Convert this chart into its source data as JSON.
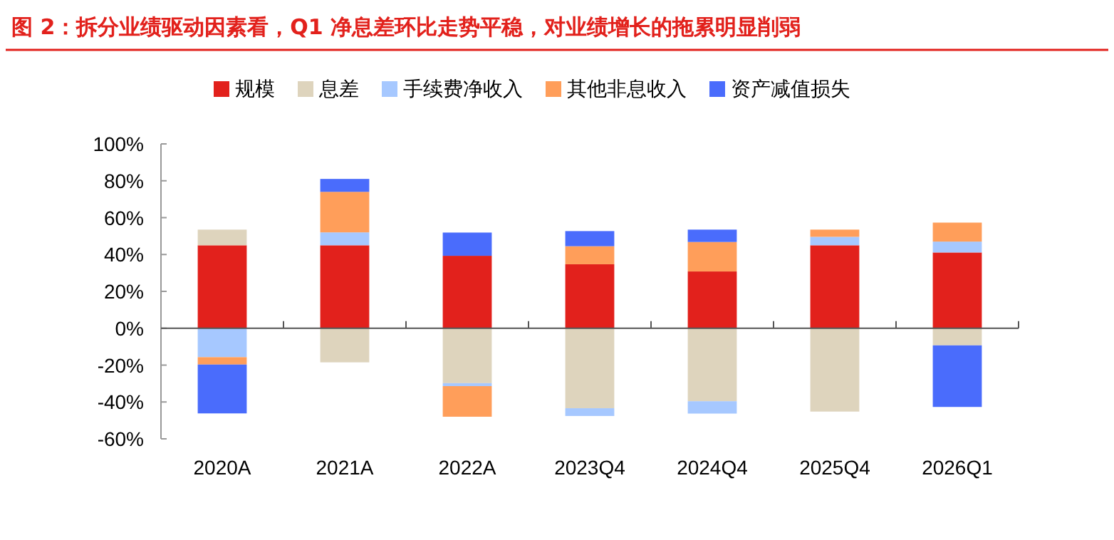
{
  "chart_data": {
    "type": "bar",
    "title": "图 2：拆分业绩驱动因素看，Q1 净息差环比走势平稳，对业绩增长的拖累明显削弱",
    "categories": [
      "2020A",
      "2021A",
      "2022A",
      "2023Q4",
      "2024Q4",
      "2025Q4",
      "2026Q1"
    ],
    "stacked": true,
    "legend": "top",
    "ylim": [
      -60,
      100
    ],
    "yticks": [
      {
        "value": -60,
        "label": "-60%"
      },
      {
        "value": -40,
        "label": "-40%"
      },
      {
        "value": -20,
        "label": "-20%"
      },
      {
        "value": 0,
        "label": "0%"
      },
      {
        "value": 20,
        "label": "20%"
      },
      {
        "value": 40,
        "label": "40%"
      },
      {
        "value": 60,
        "label": "60%"
      },
      {
        "value": 80,
        "label": "80%"
      },
      {
        "value": 100,
        "label": "100%"
      }
    ],
    "series": [
      {
        "name": "规模",
        "color": "#e2211c",
        "values": [
          45,
          45,
          39.3,
          34.7,
          30.8,
          45,
          41.1
        ]
      },
      {
        "name": "息差",
        "color": "#ded4bd",
        "values": [
          8.5,
          -18.5,
          -29.8,
          -43.4,
          -39.6,
          -45.2,
          -9.3
        ]
      },
      {
        "name": "手续费净收入",
        "color": "#a6c8ff",
        "values": [
          -15.7,
          7,
          -1.6,
          -4.2,
          -6.7,
          4.6,
          5.9
        ]
      },
      {
        "name": "其他非息收入",
        "color": "#ff9e5a",
        "values": [
          -4,
          22,
          -16.6,
          9.8,
          16,
          3.9,
          10.3
        ]
      },
      {
        "name": "资产减值损失",
        "color": "#4a6cfc",
        "values": [
          -26.5,
          7,
          12.6,
          8.2,
          6.7,
          null,
          -33.4
        ]
      }
    ]
  }
}
